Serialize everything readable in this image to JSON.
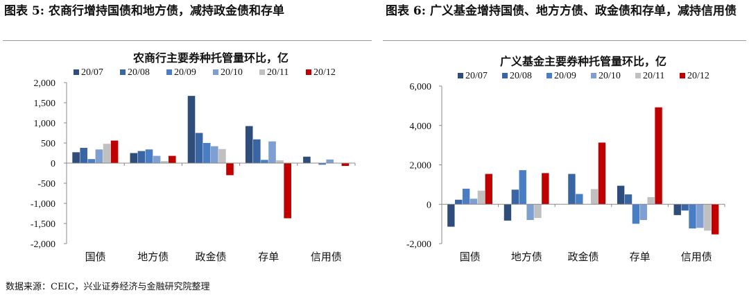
{
  "figures": [
    {
      "title": "图表 5: 农商行增持国债和地方债，减持政金债和存单"
    },
    {
      "title": "图表 6: 广义基金增持国债、地方方债、政金债和存单，减持信用债"
    }
  ],
  "source": "数据来源：CEIC，兴业证券经济与金融研究院整理",
  "chart_data": [
    {
      "type": "bar",
      "title": "农商行主要券种托管量环比，亿",
      "categories": [
        "国债",
        "地方债",
        "政金债",
        "存单",
        "信用债"
      ],
      "ylim": [
        -2000,
        2000
      ],
      "yticks": [
        -2000,
        -1500,
        -1000,
        -500,
        0,
        500,
        1000,
        1500,
        2000
      ],
      "ytick_labels": [
        "-2,000",
        "-1,500",
        "-1,000",
        "-500",
        "0",
        "500",
        "1,000",
        "1,500",
        "2,000"
      ],
      "legend_position": "top",
      "grid": false,
      "series": [
        {
          "name": "20/07",
          "color": "#2e4d7b",
          "values": [
            270,
            250,
            1670,
            920,
            160
          ]
        },
        {
          "name": "20/08",
          "color": "#3a65a5",
          "values": [
            380,
            300,
            750,
            590,
            0
          ]
        },
        {
          "name": "20/09",
          "color": "#4a7ec4",
          "values": [
            100,
            340,
            500,
            80,
            -40
          ]
        },
        {
          "name": "20/10",
          "color": "#7f9fd2",
          "values": [
            340,
            180,
            420,
            540,
            90
          ]
        },
        {
          "name": "20/11",
          "color": "#c0c0c0",
          "values": [
            480,
            50,
            350,
            70,
            0
          ]
        },
        {
          "name": "20/12",
          "color": "#c00000",
          "values": [
            560,
            180,
            -300,
            -1370,
            -70
          ]
        }
      ]
    },
    {
      "type": "bar",
      "title": "广义基金主要券种托管量环比，亿",
      "categories": [
        "国债",
        "地方债",
        "政金债",
        "存单",
        "信用债"
      ],
      "ylim": [
        -2000,
        6000
      ],
      "yticks": [
        -2000,
        0,
        2000,
        4000,
        6000
      ],
      "ytick_labels": [
        "-2,000",
        "0",
        "2,000",
        "4,000",
        "6,000"
      ],
      "legend_position": "top",
      "grid": false,
      "series": [
        {
          "name": "20/07",
          "color": "#2e4d7b",
          "values": [
            -1140,
            -830,
            0,
            940,
            -550
          ]
        },
        {
          "name": "20/08",
          "color": "#3a65a5",
          "values": [
            230,
            740,
            1540,
            500,
            -320
          ]
        },
        {
          "name": "20/09",
          "color": "#4a7ec4",
          "values": [
            790,
            1730,
            520,
            -990,
            -1230
          ]
        },
        {
          "name": "20/10",
          "color": "#7f9fd2",
          "values": [
            280,
            -800,
            0,
            -800,
            -1200
          ]
        },
        {
          "name": "20/11",
          "color": "#c0c0c0",
          "values": [
            690,
            -700,
            770,
            360,
            -1340
          ]
        },
        {
          "name": "20/12",
          "color": "#c00000",
          "values": [
            1540,
            1580,
            3130,
            4920,
            -1530
          ]
        }
      ]
    }
  ]
}
